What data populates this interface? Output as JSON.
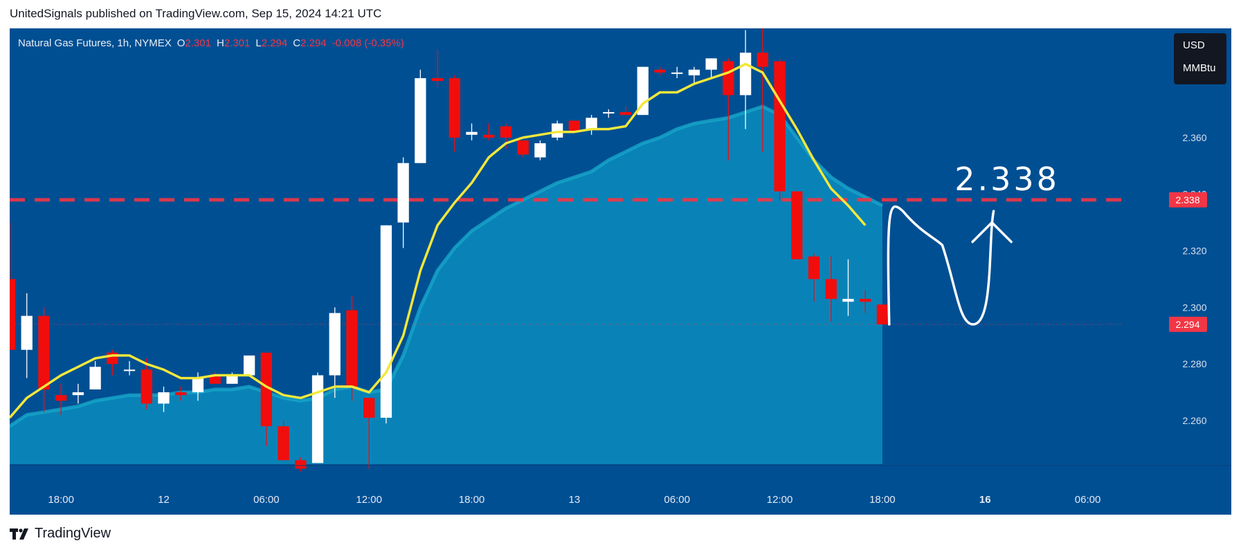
{
  "header": {
    "author_line": "UnitedSignals published on TradingView.com, Sep 15, 2024 14:21 UTC"
  },
  "legend": {
    "symbol": "Natural Gas Futures, 1h, NYMEX",
    "o_label": "O",
    "o_value": "2.301",
    "h_label": "H",
    "h_value": "2.301",
    "l_label": "L",
    "l_value": "2.294",
    "c_label": "C",
    "c_value": "2.294",
    "change": "-0.008 (-0.35%)"
  },
  "unit_box": {
    "currency": "USD",
    "unit": "MMBtu"
  },
  "footer": {
    "brand": "TradingView",
    "logo_icon": "tradingview-logo-icon"
  },
  "colors": {
    "background": "#004f93",
    "up_candle": "#ffffff",
    "down_candle": "#f20d0d",
    "ma_line": "#f2e83a",
    "area_fill": "#0a86b8",
    "area_line": "#18a6c9",
    "level_line": "#f23645",
    "annotation": "#ffffff"
  },
  "chart_data": {
    "type": "candlestick",
    "title": "Natural Gas Futures, 1h, NYMEX",
    "x_tick_labels": [
      "18:00",
      "12",
      "06:00",
      "12:00",
      "18:00",
      "13",
      "06:00",
      "12:00",
      "18:00",
      "16",
      "06:00"
    ],
    "x_tick_bold": [
      false,
      false,
      false,
      false,
      false,
      false,
      false,
      false,
      false,
      true,
      false
    ],
    "x_tick_hours": [
      -25,
      -19,
      -13,
      -7,
      -1,
      5,
      11,
      17,
      23,
      29,
      35
    ],
    "y_ticks": [
      2.36,
      2.34,
      2.32,
      2.3,
      2.28,
      2.26
    ],
    "y_tick_labels": [
      "2.360",
      "2.340",
      "2.320",
      "2.300",
      "2.280",
      "2.260"
    ],
    "ylim": [
      2.2446,
      2.3986
    ],
    "xlim_hours": [
      -28,
      37
    ],
    "candles": [
      {
        "t": -28,
        "o": 2.31,
        "h": 2.33,
        "l": 2.285,
        "c": 2.285
      },
      {
        "t": -27,
        "o": 2.285,
        "h": 2.305,
        "l": 2.275,
        "c": 2.297
      },
      {
        "t": -26,
        "o": 2.297,
        "h": 2.3,
        "l": 2.263,
        "c": 2.271
      },
      {
        "t": -25,
        "o": 2.269,
        "h": 2.273,
        "l": 2.262,
        "c": 2.267
      },
      {
        "t": -24,
        "o": 2.269,
        "h": 2.273,
        "l": 2.266,
        "c": 2.27
      },
      {
        "t": -23,
        "o": 2.271,
        "h": 2.281,
        "l": 2.271,
        "c": 2.279
      },
      {
        "t": -22,
        "o": 2.284,
        "h": 2.285,
        "l": 2.276,
        "c": 2.28
      },
      {
        "t": -21,
        "o": 2.278,
        "h": 2.281,
        "l": 2.276,
        "c": 2.278
      },
      {
        "t": -20,
        "o": 2.278,
        "h": 2.282,
        "l": 2.264,
        "c": 2.266
      },
      {
        "t": -19,
        "o": 2.266,
        "h": 2.272,
        "l": 2.263,
        "c": 2.27
      },
      {
        "t": -18,
        "o": 2.27,
        "h": 2.272,
        "l": 2.267,
        "c": 2.269
      },
      {
        "t": -17,
        "o": 2.27,
        "h": 2.277,
        "l": 2.267,
        "c": 2.275
      },
      {
        "t": -16,
        "o": 2.276,
        "h": 2.277,
        "l": 2.273,
        "c": 2.273
      },
      {
        "t": -15,
        "o": 2.273,
        "h": 2.277,
        "l": 2.273,
        "c": 2.276
      },
      {
        "t": -14,
        "o": 2.276,
        "h": 2.283,
        "l": 2.276,
        "c": 2.283
      },
      {
        "t": -13,
        "o": 2.284,
        "h": 2.284,
        "l": 2.251,
        "c": 2.258
      },
      {
        "t": -12,
        "o": 2.258,
        "h": 2.26,
        "l": 2.247,
        "c": 2.246
      },
      {
        "t": -11,
        "o": 2.246,
        "h": 2.247,
        "l": 2.242,
        "c": 2.243
      },
      {
        "t": -10,
        "o": 2.245,
        "h": 2.277,
        "l": 2.245,
        "c": 2.276
      },
      {
        "t": -9,
        "o": 2.276,
        "h": 2.3,
        "l": 2.268,
        "c": 2.298
      },
      {
        "t": -8,
        "o": 2.299,
        "h": 2.304,
        "l": 2.267,
        "c": 2.272
      },
      {
        "t": -7,
        "o": 2.268,
        "h": 2.268,
        "l": 2.243,
        "c": 2.261
      },
      {
        "t": -6,
        "o": 2.261,
        "h": 2.329,
        "l": 2.259,
        "c": 2.329
      },
      {
        "t": -5,
        "o": 2.33,
        "h": 2.353,
        "l": 2.321,
        "c": 2.351
      },
      {
        "t": -4,
        "o": 2.351,
        "h": 2.384,
        "l": 2.351,
        "c": 2.381
      },
      {
        "t": -3,
        "o": 2.381,
        "h": 2.391,
        "l": 2.378,
        "c": 2.38
      },
      {
        "t": -2,
        "o": 2.381,
        "h": 2.382,
        "l": 2.355,
        "c": 2.36
      },
      {
        "t": -1,
        "o": 2.361,
        "h": 2.365,
        "l": 2.359,
        "c": 2.362
      },
      {
        "t": 0,
        "o": 2.361,
        "h": 2.365,
        "l": 2.359,
        "c": 2.36
      },
      {
        "t": 1,
        "o": 2.364,
        "h": 2.365,
        "l": 2.356,
        "c": 2.36
      },
      {
        "t": 2,
        "o": 2.359,
        "h": 2.359,
        "l": 2.353,
        "c": 2.354
      },
      {
        "t": 3,
        "o": 2.353,
        "h": 2.359,
        "l": 2.352,
        "c": 2.358
      },
      {
        "t": 4,
        "o": 2.36,
        "h": 2.366,
        "l": 2.359,
        "c": 2.365
      },
      {
        "t": 5,
        "o": 2.366,
        "h": 2.366,
        "l": 2.362,
        "c": 2.362
      },
      {
        "t": 6,
        "o": 2.363,
        "h": 2.368,
        "l": 2.361,
        "c": 2.367
      },
      {
        "t": 7,
        "o": 2.369,
        "h": 2.37,
        "l": 2.367,
        "c": 2.369
      },
      {
        "t": 8,
        "o": 2.369,
        "h": 2.371,
        "l": 2.368,
        "c": 2.368
      },
      {
        "t": 9,
        "o": 2.368,
        "h": 2.385,
        "l": 2.368,
        "c": 2.385
      },
      {
        "t": 10,
        "o": 2.384,
        "h": 2.385,
        "l": 2.382,
        "c": 2.383
      },
      {
        "t": 11,
        "o": 2.383,
        "h": 2.385,
        "l": 2.381,
        "c": 2.383
      },
      {
        "t": 12,
        "o": 2.382,
        "h": 2.385,
        "l": 2.379,
        "c": 2.384
      },
      {
        "t": 13,
        "o": 2.384,
        "h": 2.388,
        "l": 2.381,
        "c": 2.388
      },
      {
        "t": 14,
        "o": 2.387,
        "h": 2.388,
        "l": 2.352,
        "c": 2.375
      },
      {
        "t": 15,
        "o": 2.375,
        "h": 2.398,
        "l": 2.363,
        "c": 2.39
      },
      {
        "t": 16,
        "o": 2.39,
        "h": 2.4,
        "l": 2.355,
        "c": 2.385
      },
      {
        "t": 17,
        "o": 2.387,
        "h": 2.388,
        "l": 2.338,
        "c": 2.341
      },
      {
        "t": 18,
        "o": 2.341,
        "h": 2.341,
        "l": 2.318,
        "c": 2.317
      },
      {
        "t": 19,
        "o": 2.318,
        "h": 2.319,
        "l": 2.302,
        "c": 2.31
      },
      {
        "t": 20,
        "o": 2.31,
        "h": 2.318,
        "l": 2.295,
        "c": 2.303
      },
      {
        "t": 21,
        "o": 2.302,
        "h": 2.317,
        "l": 2.297,
        "c": 2.303
      },
      {
        "t": 22,
        "o": 2.303,
        "h": 2.306,
        "l": 2.298,
        "c": 2.302
      },
      {
        "t": 23,
        "o": 2.301,
        "h": 2.301,
        "l": 2.294,
        "c": 2.294
      }
    ],
    "ma_line": [
      [
        -28,
        2.261
      ],
      [
        -27,
        2.268
      ],
      [
        -26,
        2.272
      ],
      [
        -25,
        2.276
      ],
      [
        -24,
        2.279
      ],
      [
        -23,
        2.282
      ],
      [
        -22,
        2.283
      ],
      [
        -21,
        2.283
      ],
      [
        -20,
        2.28
      ],
      [
        -19,
        2.278
      ],
      [
        -18,
        2.275
      ],
      [
        -17,
        2.275
      ],
      [
        -16,
        2.276
      ],
      [
        -15,
        2.276
      ],
      [
        -14,
        2.276
      ],
      [
        -13,
        2.272
      ],
      [
        -12,
        2.269
      ],
      [
        -11,
        2.268
      ],
      [
        -10,
        2.27
      ],
      [
        -9,
        2.272
      ],
      [
        -8,
        2.272
      ],
      [
        -7,
        2.27
      ],
      [
        -6,
        2.277
      ],
      [
        -5,
        2.29
      ],
      [
        -4,
        2.313
      ],
      [
        -3,
        2.329
      ],
      [
        -2,
        2.337
      ],
      [
        -1,
        2.344
      ],
      [
        0,
        2.353
      ],
      [
        1,
        2.358
      ],
      [
        2,
        2.36
      ],
      [
        3,
        2.361
      ],
      [
        4,
        2.362
      ],
      [
        5,
        2.362
      ],
      [
        6,
        2.363
      ],
      [
        7,
        2.363
      ],
      [
        8,
        2.364
      ],
      [
        9,
        2.372
      ],
      [
        10,
        2.376
      ],
      [
        11,
        2.376
      ],
      [
        12,
        2.379
      ],
      [
        13,
        2.381
      ],
      [
        14,
        2.383
      ],
      [
        15,
        2.386
      ],
      [
        16,
        2.383
      ],
      [
        17,
        2.373
      ],
      [
        18,
        2.363
      ],
      [
        19,
        2.352
      ],
      [
        20,
        2.342
      ],
      [
        21,
        2.336
      ],
      [
        22,
        2.329
      ]
    ],
    "area_line": [
      [
        -28,
        2.258
      ],
      [
        -27,
        2.262
      ],
      [
        -26,
        2.263
      ],
      [
        -25,
        2.264
      ],
      [
        -24,
        2.265
      ],
      [
        -23,
        2.267
      ],
      [
        -22,
        2.268
      ],
      [
        -21,
        2.269
      ],
      [
        -20,
        2.269
      ],
      [
        -19,
        2.269
      ],
      [
        -18,
        2.27
      ],
      [
        -17,
        2.27
      ],
      [
        -16,
        2.271
      ],
      [
        -15,
        2.271
      ],
      [
        -14,
        2.272
      ],
      [
        -13,
        2.27
      ],
      [
        -12,
        2.268
      ],
      [
        -11,
        2.267
      ],
      [
        -10,
        2.268
      ],
      [
        -9,
        2.271
      ],
      [
        -8,
        2.272
      ],
      [
        -7,
        2.27
      ],
      [
        -6,
        2.271
      ],
      [
        -5,
        2.283
      ],
      [
        -4,
        2.3
      ],
      [
        -3,
        2.313
      ],
      [
        -2,
        2.321
      ],
      [
        -1,
        2.327
      ],
      [
        0,
        2.331
      ],
      [
        1,
        2.335
      ],
      [
        2,
        2.338
      ],
      [
        3,
        2.341
      ],
      [
        4,
        2.344
      ],
      [
        5,
        2.346
      ],
      [
        6,
        2.348
      ],
      [
        7,
        2.352
      ],
      [
        8,
        2.355
      ],
      [
        9,
        2.358
      ],
      [
        10,
        2.36
      ],
      [
        11,
        2.363
      ],
      [
        12,
        2.365
      ],
      [
        13,
        2.366
      ],
      [
        14,
        2.367
      ],
      [
        15,
        2.369
      ],
      [
        16,
        2.371
      ],
      [
        17,
        2.368
      ],
      [
        18,
        2.36
      ],
      [
        19,
        2.352
      ],
      [
        20,
        2.346
      ],
      [
        21,
        2.342
      ],
      [
        22,
        2.339
      ],
      [
        23,
        2.336
      ]
    ],
    "horizontal_level": {
      "value": 2.338,
      "label": "2.338",
      "style": "dashed"
    },
    "last_price": {
      "value": 2.294,
      "label": "2.294",
      "style": "dotted"
    },
    "annotation_text": "2.338",
    "projection_path": [
      [
        23.4,
        2.294
      ],
      [
        24.2,
        2.334
      ],
      [
        26.5,
        2.322
      ],
      [
        28.3,
        2.294
      ],
      [
        29.5,
        2.334
      ]
    ],
    "arrow_head_target": [
      29.4,
      2.33
    ]
  }
}
